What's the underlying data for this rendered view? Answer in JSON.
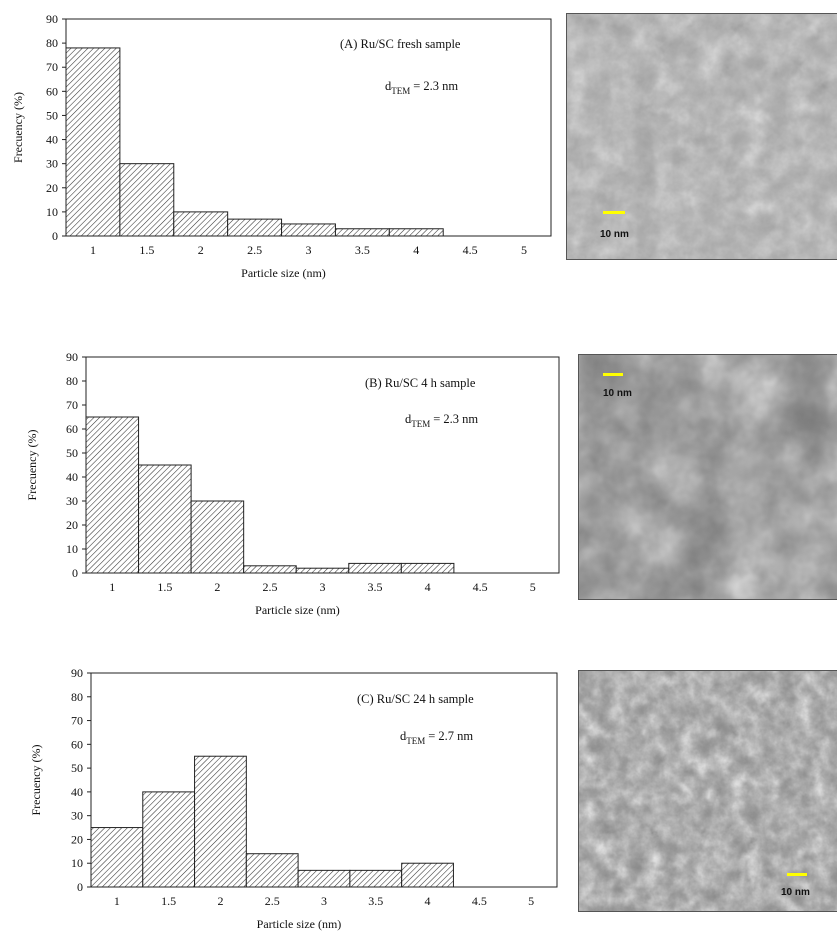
{
  "chart_data": [
    {
      "type": "bar",
      "categories": [
        "1",
        "1.5",
        "2",
        "2.5",
        "3",
        "3.5",
        "4",
        "4.5",
        "5"
      ],
      "values": [
        78,
        30,
        10,
        7,
        5,
        3,
        3,
        0,
        0
      ],
      "annotation": "(A) Ru/SC fresh sample",
      "d_label": "d",
      "d_sub": "TEM",
      "d_value": "= 2.3 nm",
      "xlabel": "Particle size (nm)",
      "ylabel": "Frecuency (%)",
      "ylim": [
        0,
        90
      ],
      "yticks": [
        "0",
        "10",
        "20",
        "30",
        "40",
        "50",
        "60",
        "70",
        "80",
        "90"
      ],
      "scale_bar": "10 nm"
    },
    {
      "type": "bar",
      "categories": [
        "1",
        "1.5",
        "2",
        "2.5",
        "3",
        "3.5",
        "4",
        "4.5",
        "5"
      ],
      "values": [
        65,
        45,
        30,
        3,
        2,
        4,
        4,
        0,
        0
      ],
      "annotation": "(B) Ru/SC 4 h sample",
      "d_label": "d",
      "d_sub": "TEM",
      "d_value": "= 2.3 nm",
      "xlabel": "Particle size (nm)",
      "ylabel": "Frecuency (%)",
      "ylim": [
        0,
        90
      ],
      "yticks": [
        "0",
        "10",
        "20",
        "30",
        "40",
        "50",
        "60",
        "70",
        "80",
        "90"
      ],
      "scale_bar": "10 nm"
    },
    {
      "type": "bar",
      "categories": [
        "1",
        "1.5",
        "2",
        "2.5",
        "3",
        "3.5",
        "4",
        "4.5",
        "5"
      ],
      "values": [
        25,
        40,
        55,
        14,
        7,
        7,
        10,
        0,
        0
      ],
      "annotation": "(C) Ru/SC 24 h sample",
      "d_label": "d",
      "d_sub": "TEM",
      "d_value": "= 2.7 nm",
      "xlabel": "Particle size (nm)",
      "ylabel": "Frecuency (%)",
      "ylim": [
        0,
        90
      ],
      "yticks": [
        "0",
        "10",
        "20",
        "30",
        "40",
        "50",
        "60",
        "70",
        "80",
        "90"
      ],
      "scale_bar": "10 nm"
    }
  ]
}
